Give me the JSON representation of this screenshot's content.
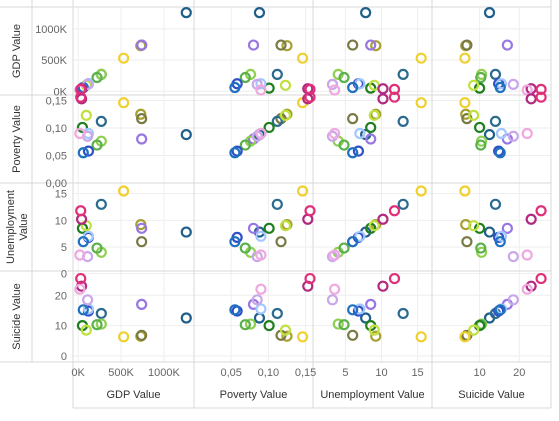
{
  "chart_data": {
    "type": "scatter",
    "subtype": "scatter-plot-matrix",
    "variables": [
      "GDP Value",
      "Poverty Value",
      "Unemployment Value",
      "Suicide Value"
    ],
    "axes": {
      "GDP Value": {
        "range": [
          -60000,
          1350000
        ],
        "ticks": [
          0,
          500000,
          1000000
        ],
        "tick_labels": [
          "0K",
          "500K",
          "1000K"
        ]
      },
      "Poverty Value": {
        "range": [
          0.0,
          0.16
        ],
        "ticks": [
          0.0,
          0.05,
          0.1,
          0.15
        ],
        "tick_labels": [
          "0,00",
          "0,05",
          "0,10",
          "0,15"
        ],
        "col_ticks": [
          0.05,
          0.1,
          0.15
        ],
        "col_tick_labels": [
          "0,05",
          "0,10",
          "0,15"
        ]
      },
      "Unemployment Value": {
        "range": [
          0.5,
          17
        ],
        "ticks": [
          0,
          5,
          10,
          15
        ],
        "tick_labels": [
          "0",
          "5",
          "10",
          "15"
        ],
        "col_ticks": [
          5,
          10,
          15
        ],
        "col_tick_labels": [
          "5",
          "10",
          "15"
        ]
      },
      "Suicide Value": {
        "range": [
          -2,
          28
        ],
        "ticks": [
          0,
          10,
          20
        ],
        "tick_labels": [
          "0",
          "10",
          "20"
        ],
        "col_ticks": [
          10,
          20
        ],
        "col_tick_labels": [
          "10",
          "20"
        ]
      }
    },
    "grid": true,
    "legend": "none",
    "records": [
      {
        "color": "#1f5f8b",
        "values": [
          1260000,
          0.088,
          7.8,
          12.5
        ]
      },
      {
        "color": "#a8a032",
        "values": [
          730000,
          0.125,
          9.2,
          6.5
        ]
      },
      {
        "color": "#7a7a45",
        "values": [
          740000,
          0.117,
          6.0,
          6.8
        ]
      },
      {
        "color": "#9977e3",
        "values": [
          740000,
          0.08,
          8.5,
          17.0
        ]
      },
      {
        "color": "#f0d030",
        "values": [
          530000,
          0.146,
          15.5,
          6.3
        ]
      },
      {
        "color": "#2b6b8f",
        "values": [
          270000,
          0.112,
          13.0,
          14.0
        ]
      },
      {
        "color": "#8fd050",
        "values": [
          270000,
          0.076,
          4.0,
          10.5
        ]
      },
      {
        "color": "#5ab04a",
        "values": [
          220000,
          0.069,
          4.8,
          10.3
        ]
      },
      {
        "color": "#3050c8",
        "values": [
          120000,
          0.058,
          6.8,
          14.8
        ]
      },
      {
        "color": "#1f7f1f",
        "values": [
          50000,
          0.101,
          8.5,
          10.0
        ]
      },
      {
        "color": "#c0e040",
        "values": [
          95000,
          0.123,
          9.0,
          8.5
        ]
      },
      {
        "color": "#a3c8ff",
        "values": [
          120000,
          0.09,
          7.0,
          15.5
        ]
      },
      {
        "color": "#2070c0",
        "values": [
          60000,
          0.055,
          6.0,
          15.2
        ]
      },
      {
        "color": "#c8a8e8",
        "values": [
          110000,
          0.085,
          3.2,
          18.5
        ]
      },
      {
        "color": "#b02a80",
        "values": [
          40000,
          0.153,
          10.2,
          23.0
        ]
      },
      {
        "color": "#f0a8e0",
        "values": [
          20000,
          0.09,
          3.5,
          22.0
        ]
      },
      {
        "color": "#e0307a",
        "values": [
          30000,
          0.156,
          11.8,
          25.5
        ]
      }
    ]
  }
}
